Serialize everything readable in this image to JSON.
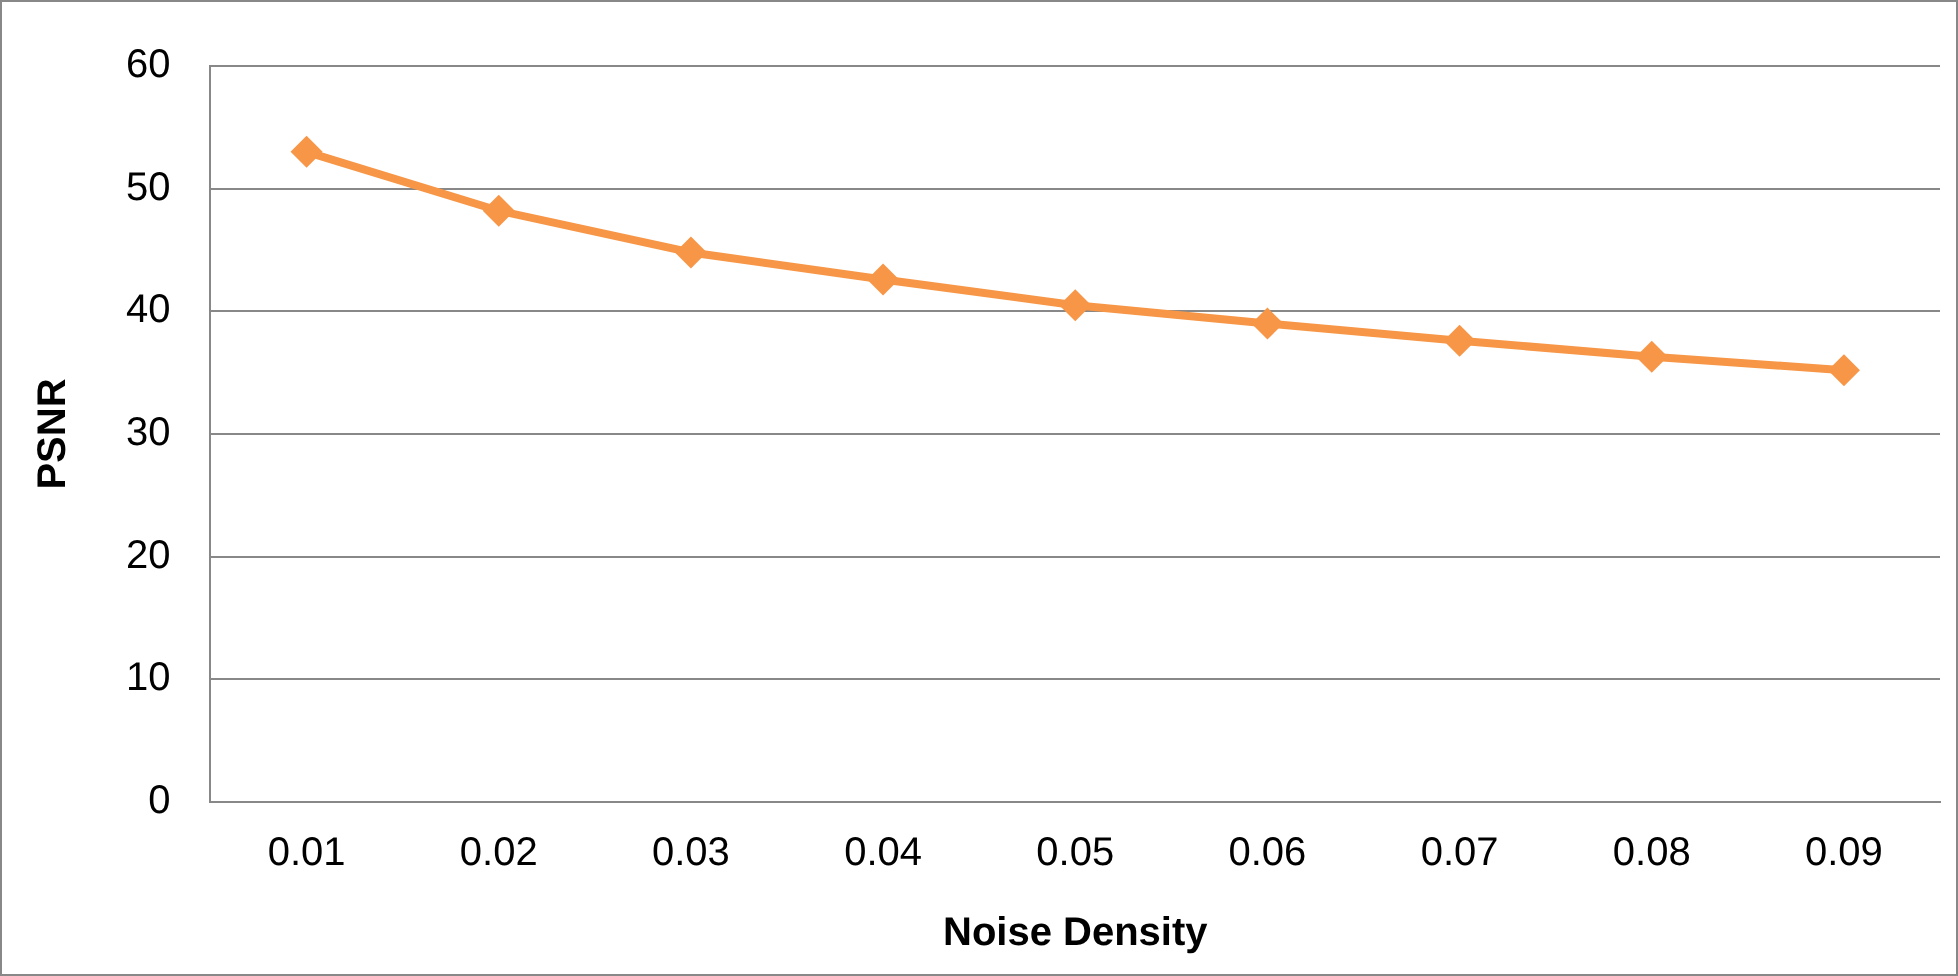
{
  "chart_data": {
    "type": "line",
    "xlabel": "Noise Density",
    "ylabel": "PSNR",
    "categories": [
      "0.01",
      "0.02",
      "0.03",
      "0.04",
      "0.05",
      "0.06",
      "0.07",
      "0.08",
      "0.09"
    ],
    "series": [
      {
        "color": "#f79646",
        "values": [
          53.0,
          48.2,
          44.8,
          42.6,
          40.5,
          39.0,
          37.6,
          36.3,
          35.2
        ]
      }
    ],
    "ylim": [
      0,
      60
    ],
    "yticks": [
      0,
      10,
      20,
      30,
      40,
      50,
      60
    ],
    "grid": "y",
    "legend": false,
    "marker": "diamond",
    "line_style": "solid"
  }
}
